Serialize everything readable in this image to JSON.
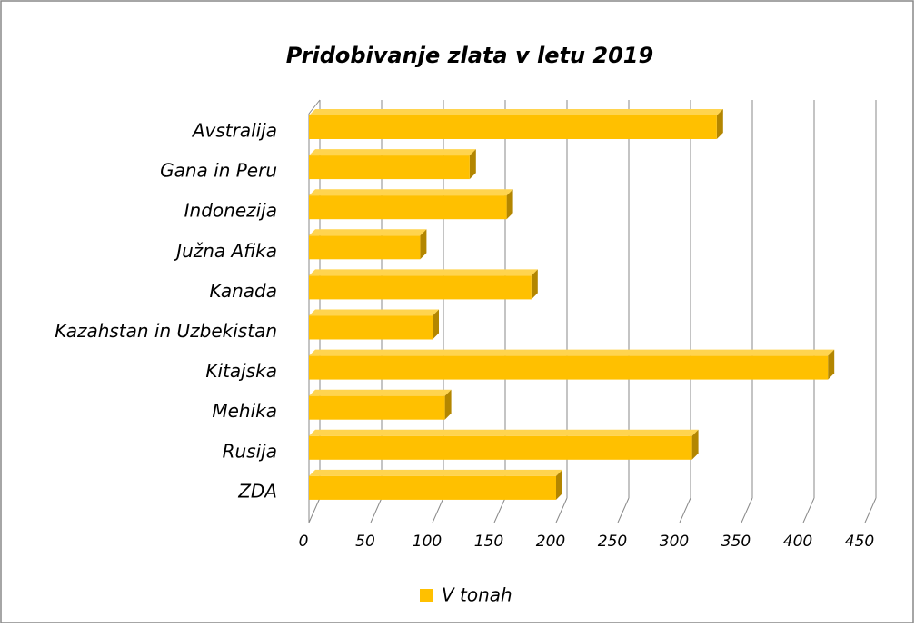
{
  "chart_data": {
    "type": "bar3d_horizontal",
    "title": "Pridobivanje zlata v letu 2019",
    "categories": [
      "Avstralija",
      "Gana in Peru",
      "Indonezija",
      "Južna Afika",
      "Kanada",
      "Kazahstan in Uzbekistan",
      "Kitajska",
      "Mehika",
      "Rusija",
      "ZDA"
    ],
    "series": [
      {
        "name": "V tonah",
        "color": "#ffc000",
        "values": [
          330,
          130,
          160,
          90,
          180,
          100,
          420,
          110,
          310,
          200
        ]
      }
    ],
    "xlim": [
      0,
      450
    ],
    "xticks": [
      0,
      50,
      100,
      150,
      200,
      250,
      300,
      350,
      400,
      450
    ],
    "grid": true,
    "legend": "bottom"
  }
}
